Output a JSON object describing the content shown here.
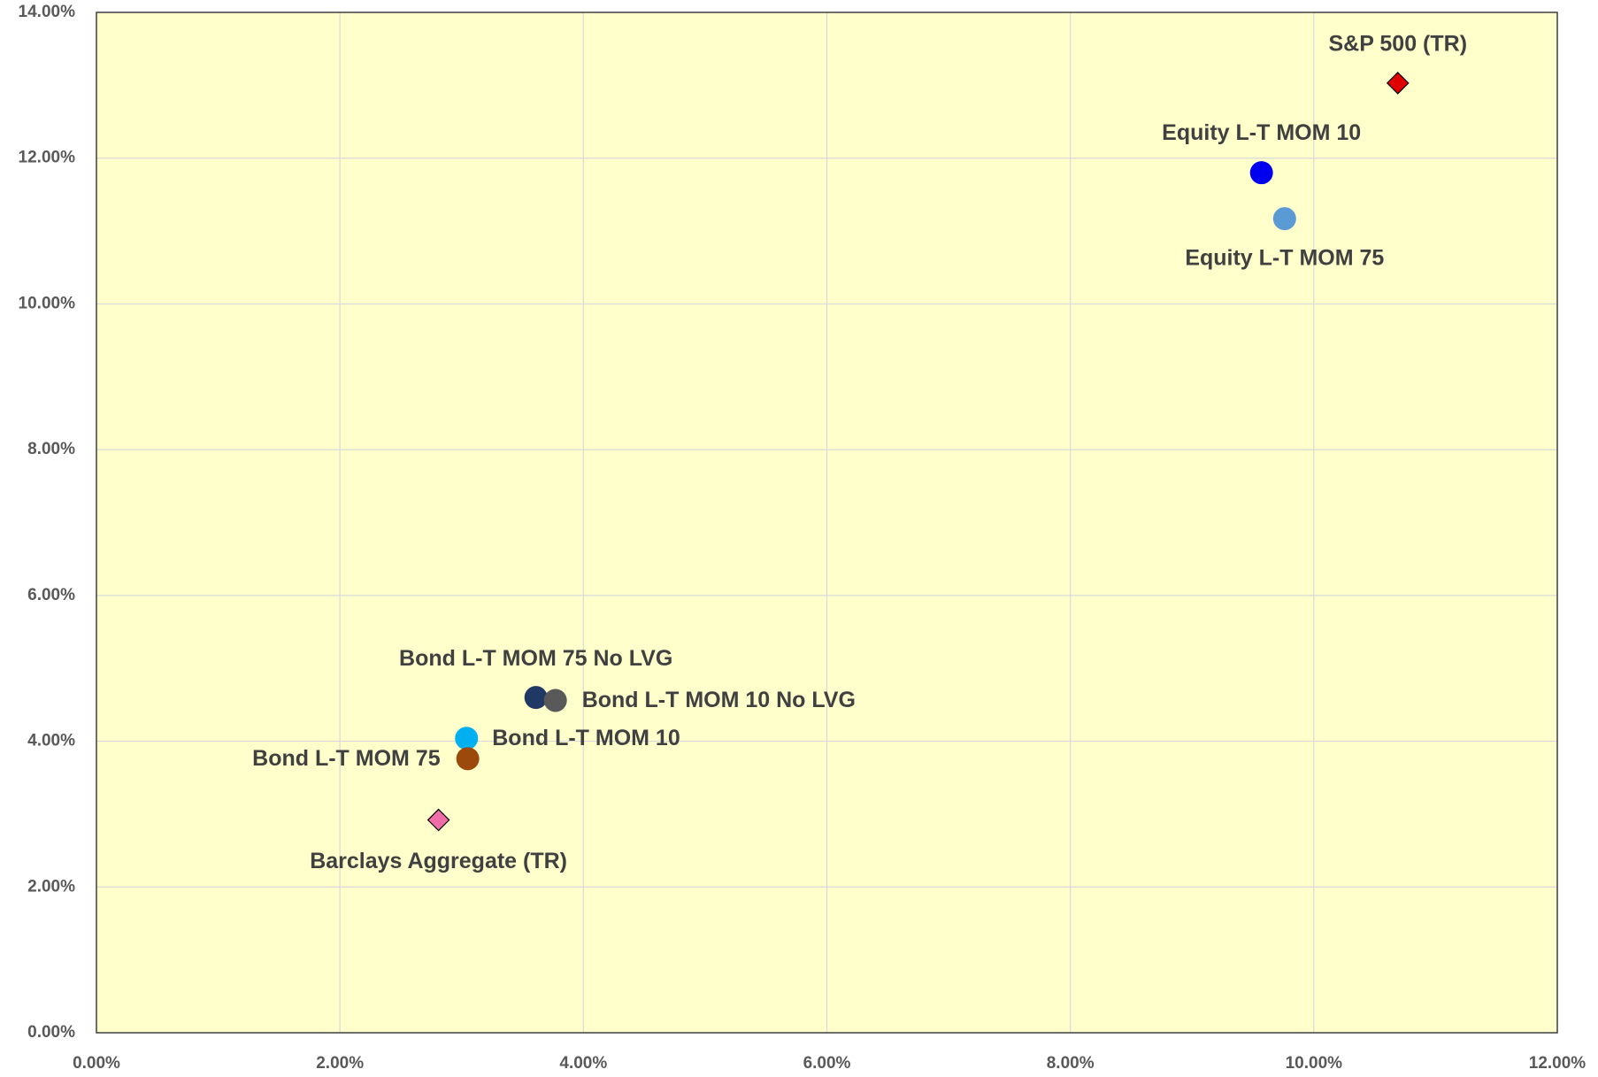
{
  "chart_data": {
    "type": "scatter",
    "series": [
      {
        "name": "S&P 500 (TR)",
        "color": "#e00000",
        "marker": "diamond",
        "x": [
          10.69
        ],
        "y": [
          13.03
        ]
      },
      {
        "name": "Equity L-T MOM 10",
        "color": "#0000ee",
        "marker": "circle",
        "x": [
          9.57
        ],
        "y": [
          11.8
        ]
      },
      {
        "name": "Equity L-T MOM 75",
        "color": "#5b9bd5",
        "marker": "circle",
        "x": [
          9.76
        ],
        "y": [
          11.17
        ]
      },
      {
        "name": "Bond L-T MOM 75 No LVG",
        "color": "#203864",
        "marker": "circle",
        "x": [
          3.61
        ],
        "y": [
          4.6
        ]
      },
      {
        "name": "Bond L-T MOM 10 No LVG",
        "color": "#595959",
        "marker": "circle",
        "x": [
          3.77
        ],
        "y": [
          4.56
        ]
      },
      {
        "name": "Bond L-T MOM 10",
        "color": "#00b0f0",
        "marker": "circle",
        "x": [
          3.04
        ],
        "y": [
          4.04
        ]
      },
      {
        "name": "Bond L-T MOM 75",
        "color": "#9c4a0c",
        "marker": "circle",
        "x": [
          3.05
        ],
        "y": [
          3.76
        ]
      },
      {
        "name": "Barclays Aggregate (TR)",
        "color": "#f06ea8",
        "marker": "diamond",
        "x": [
          2.81
        ],
        "y": [
          2.92
        ]
      }
    ],
    "xlim": [
      0,
      12
    ],
    "xticks": [
      {
        "value": 0,
        "label": "0.00%"
      },
      {
        "value": 2,
        "label": "2.00%"
      },
      {
        "value": 4,
        "label": "4.00%"
      },
      {
        "value": 6,
        "label": "6.00%"
      },
      {
        "value": 8,
        "label": "8.00%"
      },
      {
        "value": 10,
        "label": "10.00%"
      },
      {
        "value": 12,
        "label": "12.00%"
      }
    ],
    "ylim": [
      0,
      14
    ],
    "yticks": [
      {
        "value": 0,
        "label": "0.00%"
      },
      {
        "value": 2,
        "label": "2.00%"
      },
      {
        "value": 4,
        "label": "4.00%"
      },
      {
        "value": 6,
        "label": "6.00%"
      },
      {
        "value": 8,
        "label": "8.00%"
      },
      {
        "value": 10,
        "label": "10.00%"
      },
      {
        "value": 12,
        "label": "12.00%"
      },
      {
        "value": 14,
        "label": "14.00%"
      }
    ],
    "grid": true,
    "background": "#ffffcc"
  }
}
